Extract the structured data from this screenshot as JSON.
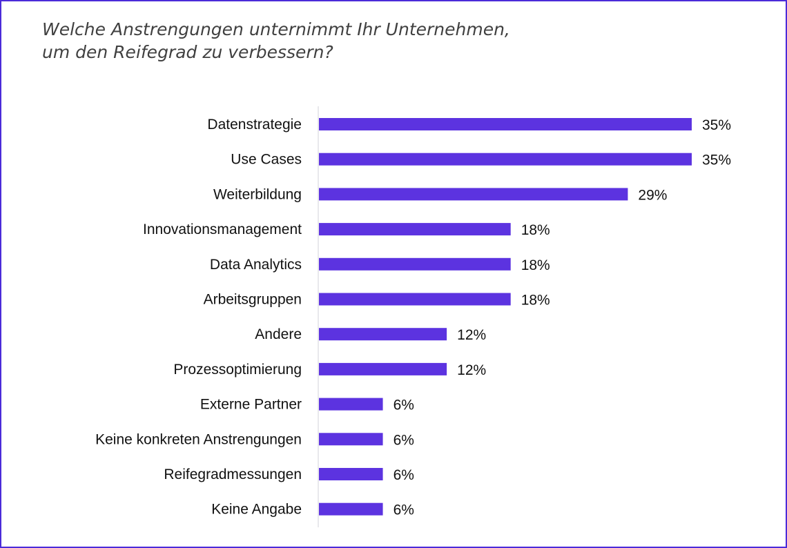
{
  "chart_data": {
    "type": "bar",
    "orientation": "horizontal",
    "title": [
      "Welche Anstrengungen unternimmt Ihr Unternehmen,",
      "um den Reifegrad zu verbessern?"
    ],
    "xlabel": "",
    "ylabel": "",
    "categories": [
      "Datenstrategie",
      "Use Cases",
      "Weiterbildung",
      "Innovationsmanagement",
      "Data Analytics",
      "Arbeitsgruppen",
      "Andere",
      "Prozessoptimierung",
      "Externe Partner",
      "Keine konkreten Anstrengungen",
      "Reifegradmessungen",
      "Keine Angabe"
    ],
    "values": [
      35,
      35,
      29,
      18,
      18,
      18,
      12,
      12,
      6,
      6,
      6,
      6
    ],
    "value_labels": [
      "35%",
      "35%",
      "29%",
      "18%",
      "18%",
      "18%",
      "12%",
      "12%",
      "6%",
      "6%",
      "6%",
      "6%"
    ],
    "xlim": [
      0,
      35
    ],
    "grid": false,
    "bar_color": "#5c33e0"
  }
}
